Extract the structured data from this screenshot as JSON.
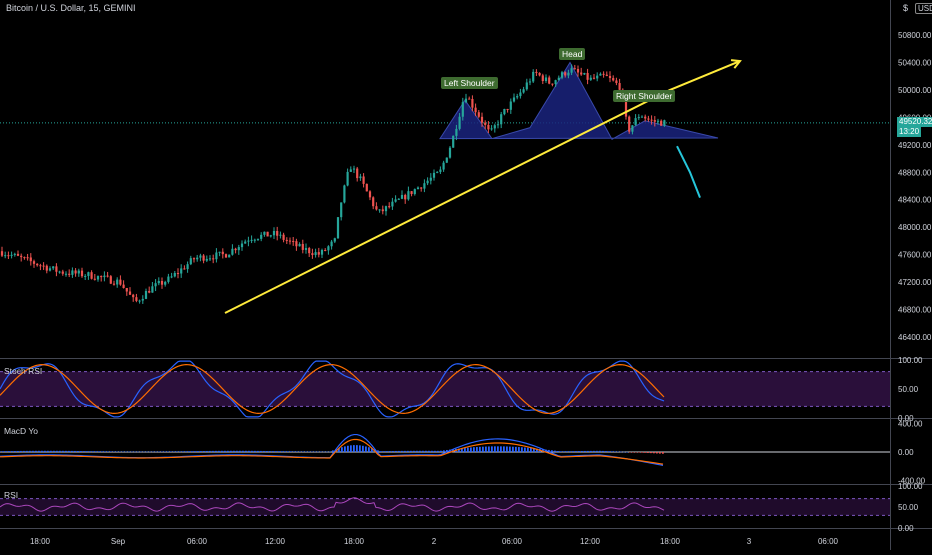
{
  "header": {
    "symbol": "Bitcoin / U.S. Dollar, 15, GEMINI",
    "currency_prefix": "$",
    "currency": "USD"
  },
  "colors": {
    "up": "#26a69a",
    "down": "#ef5350",
    "trendline": "#ffeb3b",
    "pattern_fill": "#1a237e",
    "projection": "#26c6da",
    "rsi": "#ab47bc",
    "stoch_k": "#2962ff",
    "stoch_d": "#ff6d00"
  },
  "panes": {
    "stoch": {
      "label": "Stoch RSI"
    },
    "macd": {
      "label": "MacD Yo"
    },
    "rsi": {
      "label": "RSI"
    }
  },
  "annotations": {
    "left_shoulder": "Left Shoulder",
    "head": "Head",
    "right_shoulder": "Right Shoulder"
  },
  "price_tag": {
    "price": "49520.32",
    "countdown": "13:20"
  },
  "chart_data": [
    {
      "type": "candlestick",
      "title": "Bitcoin / U.S. Dollar, 15, GEMINI",
      "y_ticks": [
        "50800.00",
        "50400.00",
        "50000.00",
        "49600.00",
        "49200.00",
        "48800.00",
        "48400.00",
        "48000.00",
        "47600.00",
        "47200.00",
        "46800.00",
        "46400.00"
      ],
      "y_tick_values": [
        50800,
        50400,
        50000,
        49600,
        49200,
        48800,
        48400,
        48000,
        47600,
        47200,
        46800,
        46400
      ],
      "ylim": [
        46200,
        51000
      ],
      "x_ticks": [
        "18:00",
        "Sep",
        "06:00",
        "12:00",
        "18:00",
        "2",
        "06:00",
        "12:00",
        "18:00",
        "3",
        "06:00"
      ],
      "current_price": 49520.32,
      "path": [
        [
          0,
          47650
        ],
        [
          30,
          47500
        ],
        [
          60,
          47350
        ],
        [
          90,
          47300
        ],
        [
          120,
          47200
        ],
        [
          135,
          46900
        ],
        [
          150,
          47100
        ],
        [
          170,
          47250
        ],
        [
          195,
          47550
        ],
        [
          225,
          47600
        ],
        [
          250,
          47850
        ],
        [
          275,
          47900
        ],
        [
          300,
          47700
        ],
        [
          320,
          47600
        ],
        [
          335,
          47800
        ],
        [
          340,
          48300
        ],
        [
          350,
          48900
        ],
        [
          360,
          48700
        ],
        [
          378,
          48200
        ],
        [
          400,
          48400
        ],
        [
          420,
          48600
        ],
        [
          440,
          48800
        ],
        [
          452,
          49250
        ],
        [
          465,
          49950
        ],
        [
          480,
          49600
        ],
        [
          490,
          49350
        ],
        [
          505,
          49700
        ],
        [
          520,
          49950
        ],
        [
          535,
          50250
        ],
        [
          550,
          50100
        ],
        [
          570,
          50300
        ],
        [
          590,
          50150
        ],
        [
          605,
          50200
        ],
        [
          620,
          50050
        ],
        [
          628,
          49400
        ],
        [
          640,
          49650
        ],
        [
          650,
          49550
        ],
        [
          665,
          49520
        ]
      ],
      "trendline": [
        [
          225,
          46750
        ],
        [
          670,
          50000
        ],
        [
          740,
          50420
        ]
      ],
      "pattern_fill": [
        [
          440,
          49290
        ],
        [
          465,
          49850
        ],
        [
          492,
          49290
        ],
        [
          530,
          49450
        ],
        [
          570,
          50400
        ],
        [
          612,
          49280
        ],
        [
          645,
          49550
        ],
        [
          718,
          49300
        ]
      ],
      "neckline_price": 49520,
      "projection": [
        [
          677,
          49180
        ],
        [
          690,
          48800
        ],
        [
          700,
          48430
        ]
      ]
    },
    {
      "type": "line",
      "title": "Stoch RSI",
      "y_ticks": [
        "100.00",
        "50.00",
        "0.00"
      ],
      "ylim": [
        0,
        100
      ],
      "bands": [
        20,
        80
      ]
    },
    {
      "type": "line",
      "title": "MacD Yo",
      "y_ticks": [
        "400.00",
        "0.00",
        "-400.00"
      ],
      "ylim": [
        -450,
        450
      ]
    },
    {
      "type": "line",
      "title": "RSI",
      "y_ticks": [
        "100.00",
        "50.00",
        "0.00"
      ],
      "ylim": [
        0,
        100
      ],
      "bands": [
        30,
        70
      ]
    }
  ]
}
